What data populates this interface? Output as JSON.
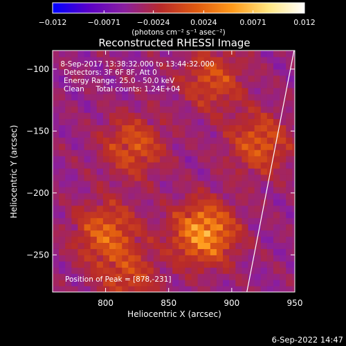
{
  "chart_data": {
    "type": "heatmap",
    "title": "Reconstructed RHESSI Image",
    "xlabel": "Heliocentric X (arcsec)",
    "ylabel": "Heliocentric Y (arcsec)",
    "xlim": [
      758,
      950
    ],
    "ylim": [
      -280,
      -85
    ],
    "xticks": [
      800,
      850,
      900,
      950
    ],
    "xtick_labels": [
      "800",
      "850",
      "900",
      "950"
    ],
    "yticks": [
      -100,
      -150,
      -200,
      -250
    ],
    "ytick_labels": [
      "−100",
      "−150",
      "−200",
      "−250"
    ],
    "colorbar": {
      "range": [
        -0.012,
        0.012
      ],
      "tick_values": [
        -0.012,
        -0.0071,
        -0.0024,
        0.0024,
        0.0071,
        0.012
      ],
      "tick_labels": [
        "−0.012",
        "−0.0071",
        "−0.0024",
        "0.0024",
        "0.0071",
        "0.012"
      ],
      "unit_label": "(photons cm⁻² s⁻¹ asec⁻²)",
      "colormap": [
        "#0000ff",
        "#5a00c8",
        "#8a1f9f",
        "#b82a2a",
        "#e05a10",
        "#ff9a1a",
        "#ffe680",
        "#ffffff"
      ]
    },
    "annotations": [
      " 8-Sep-2017 13:38:32.000 to 13:44:32.000",
      "Detectors: 3F 6F 8F, Att 0",
      "Energy Range: 25.0 - 50.0 keV",
      "Clean     Total counts: 1.24E+04"
    ],
    "peak_label": "Position of Peak = [878,-231]",
    "peak_position": [
      878,
      -231
    ],
    "sources": [
      {
        "x": 878,
        "y": -232,
        "intensity": 0.0115
      },
      {
        "x": 800,
        "y": -232,
        "intensity": 0.0075
      },
      {
        "x": 822,
        "y": -162,
        "intensity": 0.0065
      },
      {
        "x": 922,
        "y": -160,
        "intensity": 0.0068
      },
      {
        "x": 885,
        "y": -108,
        "intensity": 0.006
      },
      {
        "x": 818,
        "y": -268,
        "intensity": 0.005
      }
    ],
    "limb": [
      [
        950,
        -82
      ],
      [
        912,
        -280
      ]
    ]
  },
  "footer": {
    "timestamp": "6-Sep-2022 14:47"
  }
}
